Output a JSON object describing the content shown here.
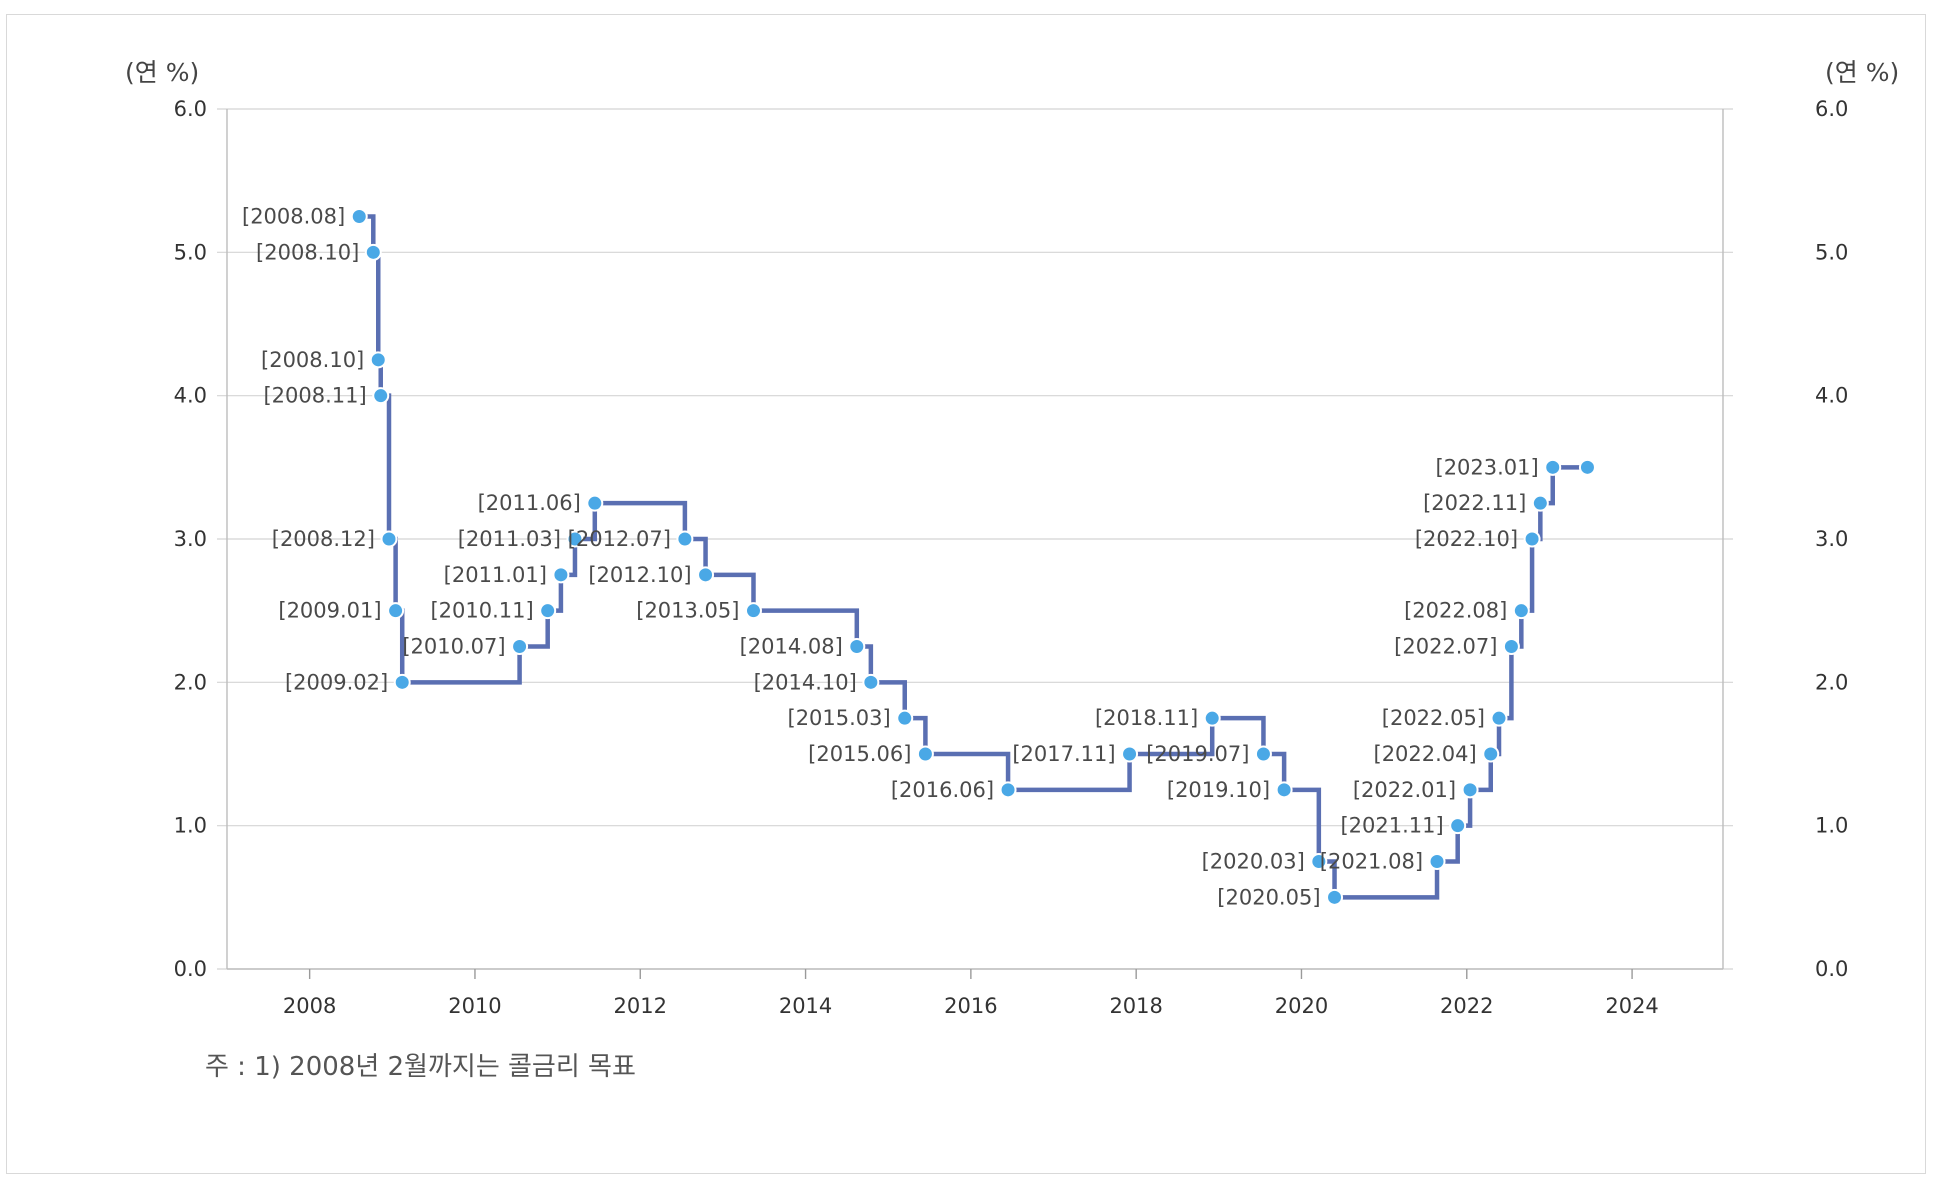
{
  "chart_data": {
    "type": "line",
    "step": "after",
    "unit_left": "(연 %)",
    "unit_right": "(연 %)",
    "ylim": [
      0,
      6
    ],
    "yticks": [
      "0.0",
      "1.0",
      "2.0",
      "3.0",
      "4.0",
      "5.0",
      "6.0"
    ],
    "xlim": [
      2007,
      2025.1
    ],
    "xticks": [
      "2008",
      "2010",
      "2012",
      "2014",
      "2016",
      "2018",
      "2020",
      "2022",
      "2024"
    ],
    "grid": true,
    "line_color": "#5a6fb2",
    "marker_color": "#4aa8e6",
    "points": [
      {
        "x": 2008.6,
        "y": 5.25,
        "label": "[2008.08]"
      },
      {
        "x": 2008.77,
        "y": 5.0,
        "label": "[2008.10]"
      },
      {
        "x": 2008.83,
        "y": 4.25,
        "label": "[2008.10]"
      },
      {
        "x": 2008.86,
        "y": 4.0,
        "label": "[2008.11]"
      },
      {
        "x": 2008.96,
        "y": 3.0,
        "label": "[2008.12]"
      },
      {
        "x": 2009.04,
        "y": 2.5,
        "label": "[2009.01]"
      },
      {
        "x": 2009.12,
        "y": 2.0,
        "label": "[2009.02]"
      },
      {
        "x": 2010.54,
        "y": 2.25,
        "label": "[2010.07]"
      },
      {
        "x": 2010.88,
        "y": 2.5,
        "label": "[2010.11]"
      },
      {
        "x": 2011.04,
        "y": 2.75,
        "label": "[2011.01]"
      },
      {
        "x": 2011.21,
        "y": 3.0,
        "label": "[2011.03]"
      },
      {
        "x": 2011.45,
        "y": 3.25,
        "label": "[2011.06]"
      },
      {
        "x": 2012.54,
        "y": 3.0,
        "label": "[2012.07]"
      },
      {
        "x": 2012.79,
        "y": 2.75,
        "label": "[2012.10]"
      },
      {
        "x": 2013.37,
        "y": 2.5,
        "label": "[2013.05]"
      },
      {
        "x": 2014.62,
        "y": 2.25,
        "label": "[2014.08]"
      },
      {
        "x": 2014.79,
        "y": 2.0,
        "label": "[2014.10]"
      },
      {
        "x": 2015.2,
        "y": 1.75,
        "label": "[2015.03]"
      },
      {
        "x": 2015.45,
        "y": 1.5,
        "label": "[2015.06]"
      },
      {
        "x": 2016.45,
        "y": 1.25,
        "label": "[2016.06]"
      },
      {
        "x": 2017.92,
        "y": 1.5,
        "label": "[2017.11]"
      },
      {
        "x": 2018.92,
        "y": 1.75,
        "label": "[2018.11]"
      },
      {
        "x": 2019.54,
        "y": 1.5,
        "label": "[2019.07]"
      },
      {
        "x": 2019.79,
        "y": 1.25,
        "label": "[2019.10]"
      },
      {
        "x": 2020.21,
        "y": 0.75,
        "label": "[2020.03]"
      },
      {
        "x": 2020.4,
        "y": 0.5,
        "label": "[2020.05]"
      },
      {
        "x": 2021.64,
        "y": 0.75,
        "label": "[2021.08]"
      },
      {
        "x": 2021.89,
        "y": 1.0,
        "label": "[2021.11]"
      },
      {
        "x": 2022.04,
        "y": 1.25,
        "label": "[2022.01]"
      },
      {
        "x": 2022.29,
        "y": 1.5,
        "label": "[2022.04]"
      },
      {
        "x": 2022.39,
        "y": 1.75,
        "label": "[2022.05]"
      },
      {
        "x": 2022.54,
        "y": 2.25,
        "label": "[2022.07]"
      },
      {
        "x": 2022.66,
        "y": 2.5,
        "label": "[2022.08]"
      },
      {
        "x": 2022.79,
        "y": 3.0,
        "label": "[2022.10]"
      },
      {
        "x": 2022.89,
        "y": 3.25,
        "label": "[2022.11]"
      },
      {
        "x": 2023.04,
        "y": 3.5,
        "label": "[2023.01]"
      },
      {
        "x": 2023.46,
        "y": 3.5,
        "label": ""
      }
    ]
  },
  "note": "주 : 1) 2008년 2월까지는 콜금리 목표"
}
